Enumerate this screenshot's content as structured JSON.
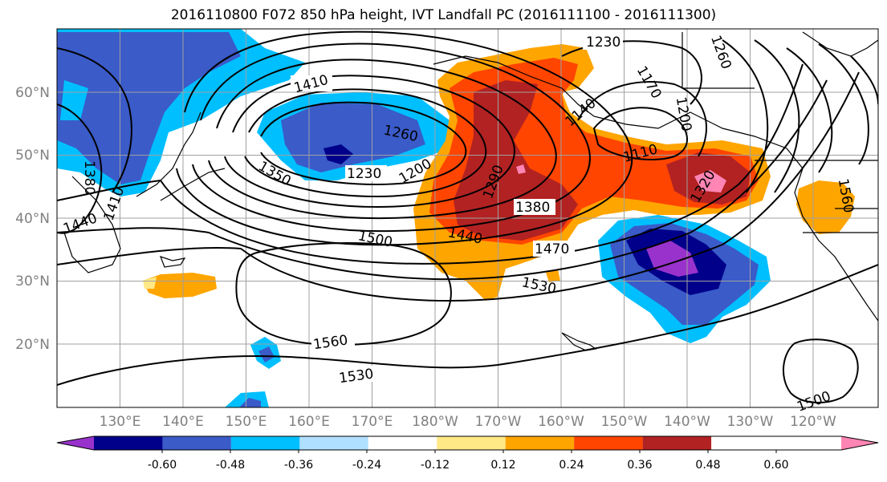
{
  "title": "2016110800 F072 850 hPa height, IVT Landfall PC (2016111100 - 2016111300)",
  "lat_ticks": [
    "60°N",
    "50°N",
    "40°N",
    "30°N",
    "20°N"
  ],
  "lon_ticks": [
    "130°E",
    "140°E",
    "150°E",
    "160°E",
    "170°E",
    "180°W",
    "170°W",
    "160°W",
    "150°W",
    "140°W",
    "130°W",
    "120°W"
  ],
  "colorbar": {
    "colors": [
      "#9932cc",
      "#00008b",
      "#3a5bc8",
      "#00bfff",
      "#b0e0ff",
      "#ffffff",
      "#ffe987",
      "#ffa500",
      "#ff4500",
      "#b22222",
      "#ff85b4"
    ],
    "tick_labels": [
      "-0.60",
      "-0.48",
      "-0.36",
      "-0.24",
      "-0.12",
      "0.12",
      "0.24",
      "0.36",
      "0.48",
      "0.60"
    ]
  },
  "contour_labels": [
    "1230",
    "1410",
    "1260",
    "1230",
    "1200",
    "1350",
    "1380",
    "1410",
    "1440",
    "1290",
    "1380",
    "1440",
    "1470",
    "1500",
    "1530",
    "1560",
    "1530",
    "1140",
    "1170",
    "1200",
    "1110",
    "1320",
    "1260",
    "1560",
    "1500"
  ]
}
